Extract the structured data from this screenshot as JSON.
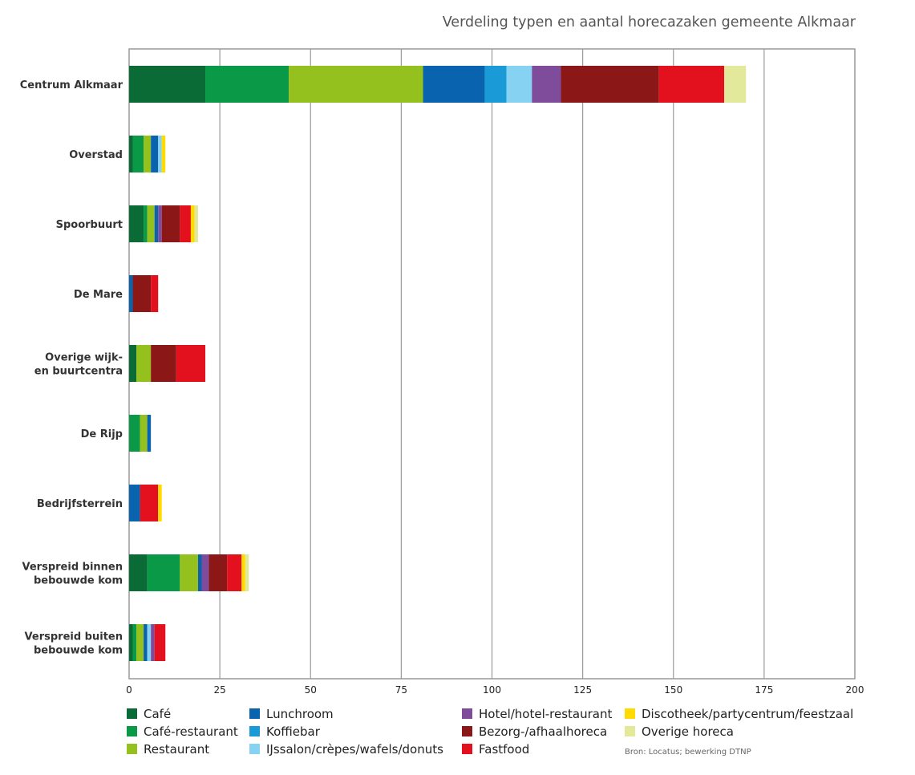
{
  "chart_data": {
    "type": "bar",
    "orientation": "horizontal",
    "stacked": true,
    "title": "Verdeling typen en aantal horecazaken gemeente Alkmaar",
    "categories": [
      [
        "Centrum Alkmaar"
      ],
      [
        "Overstad"
      ],
      [
        "Spoorbuurt"
      ],
      [
        "De Mare"
      ],
      [
        "Overige wijk-",
        "en buurtcentra"
      ],
      [
        "De Rijp"
      ],
      [
        "Bedrijfsterrein"
      ],
      [
        "Verspreid binnen",
        "bebouwde kom"
      ],
      [
        "Verspreid buiten",
        "bebouwde kom"
      ]
    ],
    "series": [
      {
        "name": "Café",
        "color": "#0b6b36",
        "values": [
          21,
          1,
          4,
          0,
          2,
          0,
          0,
          5,
          1
        ]
      },
      {
        "name": "Café-restaurant",
        "color": "#0a9a47",
        "values": [
          23,
          3,
          1,
          0,
          0,
          3,
          0,
          9,
          1
        ]
      },
      {
        "name": "Restaurant",
        "color": "#95c11f",
        "values": [
          37,
          2,
          2,
          0,
          4,
          2,
          0,
          5,
          2
        ]
      },
      {
        "name": "Lunchroom",
        "color": "#0a63ae",
        "values": [
          17,
          2,
          1,
          1,
          0,
          1,
          3,
          1,
          1
        ]
      },
      {
        "name": "Koffiebar",
        "color": "#1a9ad6",
        "values": [
          6,
          0,
          0,
          0,
          0,
          0,
          0,
          0,
          0
        ]
      },
      {
        "name": "IJssalon/crèpes/wafels/donuts",
        "color": "#86d2f2",
        "values": [
          7,
          1,
          0,
          0,
          0,
          0,
          0,
          0,
          1
        ]
      },
      {
        "name": "Hotel/hotel-restaurant",
        "color": "#7e4c9b",
        "values": [
          8,
          0,
          1,
          0,
          0,
          0,
          0,
          2,
          1
        ]
      },
      {
        "name": "Bezorg-/afhaalhoreca",
        "color": "#8b1716",
        "values": [
          27,
          0,
          5,
          5,
          7,
          0,
          0,
          5,
          0
        ]
      },
      {
        "name": "Fastfood",
        "color": "#e3101e",
        "values": [
          18,
          0,
          3,
          2,
          8,
          0,
          5,
          4,
          3
        ]
      },
      {
        "name": "Discotheek/partycentrum/feestzaal",
        "color": "#ffdb00",
        "values": [
          0,
          1,
          1,
          0,
          0,
          0,
          1,
          1,
          0
        ]
      },
      {
        "name": "Overige horeca",
        "color": "#e2e99a",
        "values": [
          6,
          0,
          1,
          0,
          0,
          0,
          0,
          1,
          0
        ]
      }
    ],
    "xlim": [
      0,
      200
    ],
    "xticks": [
      0,
      25,
      50,
      75,
      100,
      125,
      150,
      175,
      200
    ],
    "xlabel": "",
    "ylabel": "",
    "grid": "vertical",
    "legend_position": "bottom",
    "source": "Bron: Locatus; bewerking DTNP"
  }
}
